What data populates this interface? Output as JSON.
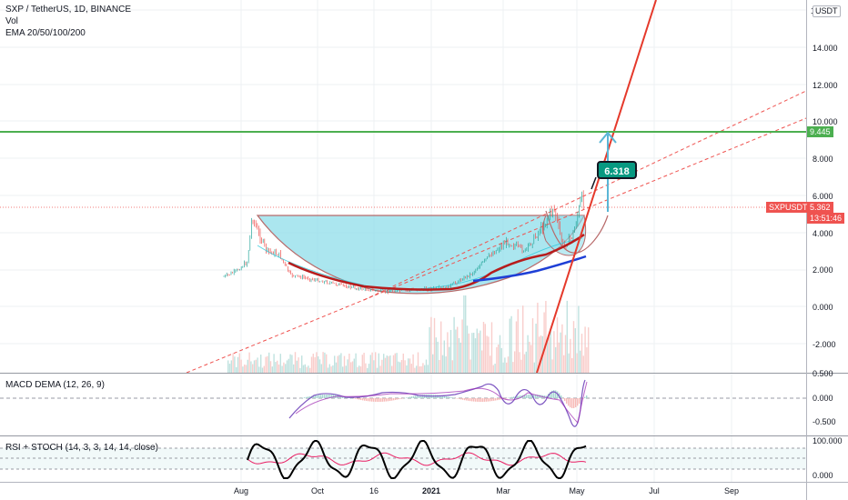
{
  "legend": {
    "symbol_line": "SXP / TetherUS, 1D, BINANCE",
    "vol": "Vol",
    "ema": "EMA 20/50/100/200",
    "macd": "MACD DEMA (12, 26, 9)",
    "rsi": "RSI + STOCH (14, 3, 3, 14, 14, close)"
  },
  "price_axis": {
    "unit": "USDT",
    "top_label": "1",
    "labels": [
      "14.000",
      "12.000",
      "10.000",
      "8.000",
      "6.000",
      "4.000",
      "2.000",
      "0.000",
      "-2.000"
    ]
  },
  "macd_axis": {
    "labels": [
      "0.500",
      "0.000",
      "-0.500"
    ]
  },
  "rsi_axis": {
    "labels": [
      "100.000",
      "0.000"
    ]
  },
  "time_axis": {
    "labels": [
      "Aug",
      "Oct",
      "16",
      "2021",
      "Mar",
      "May",
      "Jul",
      "Sep"
    ]
  },
  "badges": {
    "resistance": "9.445",
    "symbol_tag": "SXPUSDT",
    "last_price": "5.362",
    "countdown": "13:51:46"
  },
  "callout": {
    "value": "6.318"
  },
  "colors": {
    "cup_fill": "#8fdde9",
    "trendline": "#e5392b",
    "resistance": "#4caf50",
    "ema_dark_red": "#b71c1c",
    "ema_blue": "#1e3fd6",
    "macd_line": "#7e57c2",
    "stoch_line": "#000000",
    "rsi_line": "#e91e63",
    "callout_bg": "#089981"
  },
  "chart_data": {
    "type": "line",
    "title": "SXP / TetherUS, 1D, BINANCE",
    "x_range": [
      "2020-08",
      "2021-09"
    ],
    "ylim": [
      -3.5,
      16.5
    ],
    "price_path": [
      {
        "x": "2020-07-18",
        "y": 1.6
      },
      {
        "x": "2020-07-28",
        "y": 1.9
      },
      {
        "x": "2020-08-06",
        "y": 2.4
      },
      {
        "x": "2020-08-10",
        "y": 4.9
      },
      {
        "x": "2020-08-14",
        "y": 4.1
      },
      {
        "x": "2020-08-22",
        "y": 3.0
      },
      {
        "x": "2020-09-01",
        "y": 2.8
      },
      {
        "x": "2020-09-10",
        "y": 1.7
      },
      {
        "x": "2020-09-25",
        "y": 1.5
      },
      {
        "x": "2020-10-10",
        "y": 1.3
      },
      {
        "x": "2020-11-01",
        "y": 1.0
      },
      {
        "x": "2020-11-25",
        "y": 0.8
      },
      {
        "x": "2020-12-20",
        "y": 0.9
      },
      {
        "x": "2021-01-15",
        "y": 1.0
      },
      {
        "x": "2021-02-05",
        "y": 1.8
      },
      {
        "x": "2021-02-20",
        "y": 2.8
      },
      {
        "x": "2021-03-05",
        "y": 3.5
      },
      {
        "x": "2021-03-20",
        "y": 3.0
      },
      {
        "x": "2021-04-05",
        "y": 4.5
      },
      {
        "x": "2021-04-12",
        "y": 5.4
      },
      {
        "x": "2021-04-20",
        "y": 3.2
      },
      {
        "x": "2021-04-28",
        "y": 3.9
      },
      {
        "x": "2021-05-05",
        "y": 5.9
      },
      {
        "x": "2021-05-07",
        "y": 5.362
      }
    ],
    "horizontal_levels": [
      9.445,
      4.9
    ],
    "last_price": 5.362,
    "target": 6.318
  }
}
